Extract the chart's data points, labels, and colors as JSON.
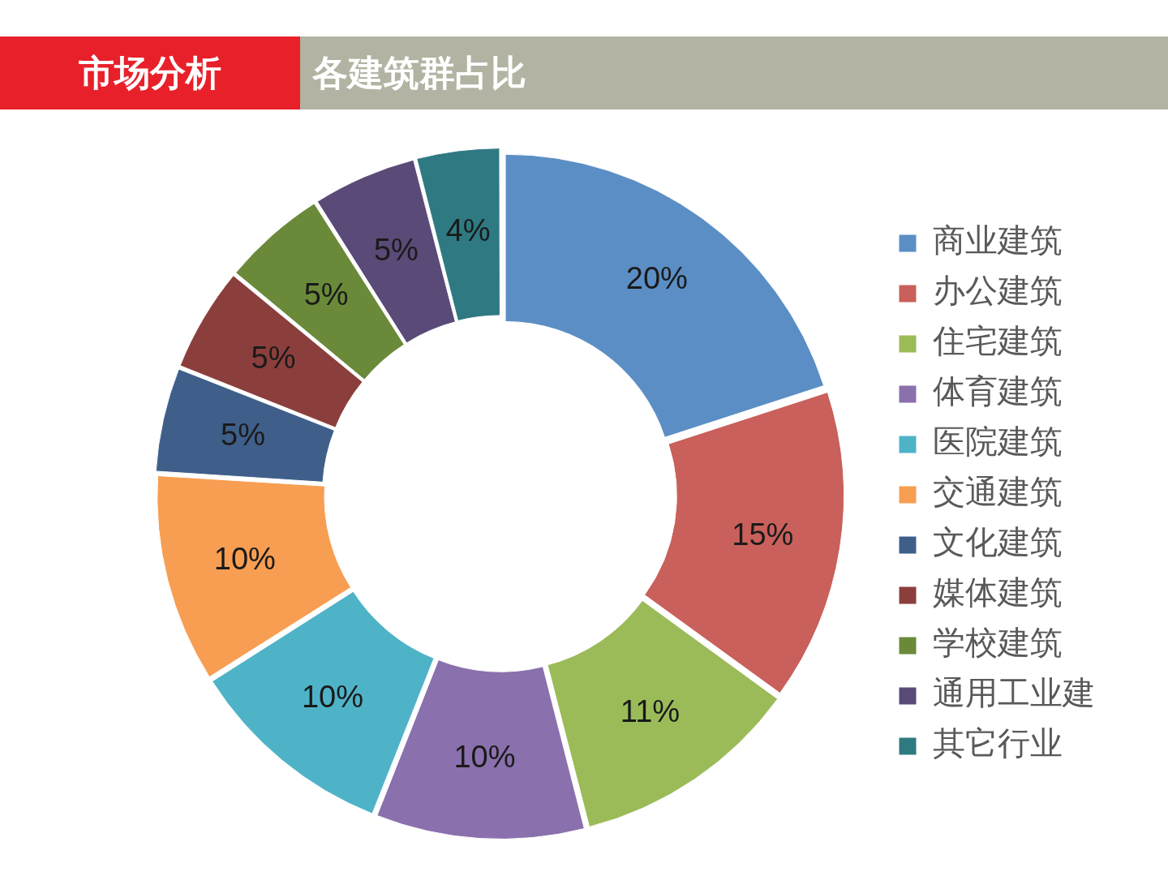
{
  "chart_data": {
    "type": "donut",
    "title": "市场分析",
    "subtitle": "各建筑群占比",
    "categories": [
      "商业建筑",
      "办公建筑",
      "住宅建筑",
      "体育建筑",
      "医院建筑",
      "交通建筑",
      "文化建筑",
      "媒体建筑",
      "学校建筑",
      "通用工业建",
      "其它行业"
    ],
    "values": [
      20,
      15,
      11,
      10,
      10,
      10,
      5,
      5,
      5,
      5,
      4
    ],
    "colors": [
      "#5b8ec4",
      "#c9605b",
      "#9bbb59",
      "#8a70ad",
      "#4fb3c8",
      "#f79e52",
      "#3f5f8a",
      "#8b3f3c",
      "#6a8a3a",
      "#5a4a78",
      "#2f7a82"
    ],
    "value_labels": [
      "20%",
      "15%",
      "11%",
      "10%",
      "10%",
      "10%",
      "5%",
      "5%",
      "5%",
      "5%",
      "4%"
    ],
    "legend": "right"
  }
}
